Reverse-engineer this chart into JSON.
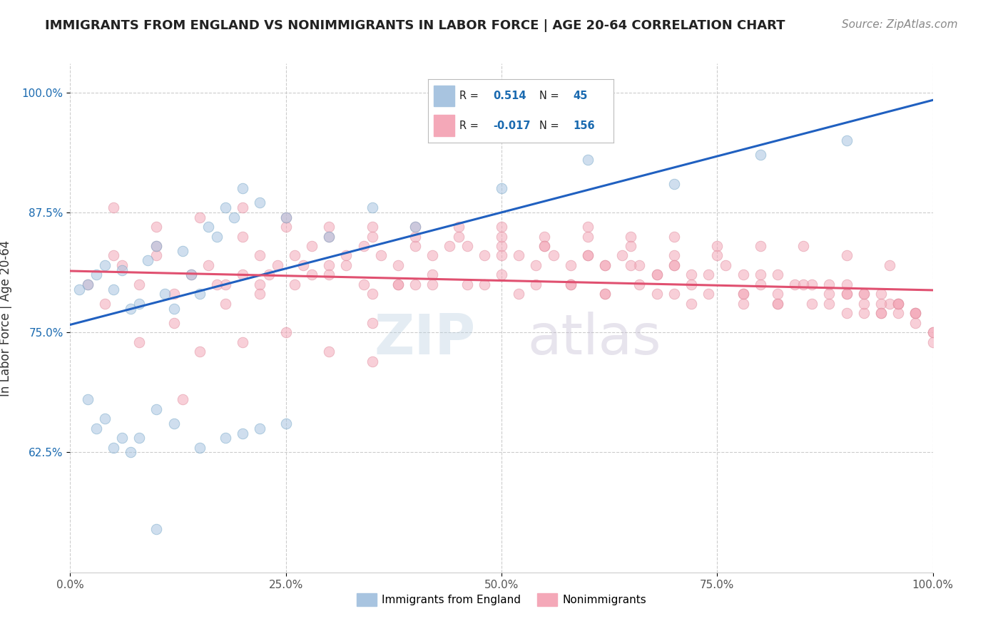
{
  "title": "IMMIGRANTS FROM ENGLAND VS NONIMMIGRANTS IN LABOR FORCE | AGE 20-64 CORRELATION CHART",
  "source": "Source: ZipAtlas.com",
  "ylabel": "In Labor Force | Age 20-64",
  "xlim": [
    0.0,
    1.0
  ],
  "ylim": [
    0.5,
    1.03
  ],
  "yticks": [
    0.625,
    0.75,
    0.875,
    1.0
  ],
  "ytick_labels": [
    "62.5%",
    "75.0%",
    "87.5%",
    "100.0%"
  ],
  "xticks": [
    0.0,
    0.25,
    0.5,
    0.75,
    1.0
  ],
  "xtick_labels": [
    "0.0%",
    "25.0%",
    "50.0%",
    "75.0%",
    "100.0%"
  ],
  "blue_label": "Immigrants from England",
  "pink_label": "Nonimmigrants",
  "blue_color": "#a8c4e0",
  "pink_color": "#f4a8b8",
  "blue_edge": "#7aaaca",
  "pink_edge": "#e090a0",
  "trend_blue": "#2060c0",
  "trend_pink": "#e05070",
  "blue_scatter_x": [
    0.01,
    0.02,
    0.03,
    0.04,
    0.05,
    0.06,
    0.07,
    0.08,
    0.09,
    0.1,
    0.11,
    0.12,
    0.13,
    0.14,
    0.15,
    0.16,
    0.17,
    0.18,
    0.19,
    0.2,
    0.22,
    0.25,
    0.3,
    0.35,
    0.4,
    0.5,
    0.6,
    0.7,
    0.8,
    0.9,
    0.02,
    0.03,
    0.04,
    0.05,
    0.06,
    0.07,
    0.08,
    0.1,
    0.12,
    0.15,
    0.18,
    0.2,
    0.22,
    0.25,
    0.1
  ],
  "blue_scatter_y": [
    0.795,
    0.8,
    0.81,
    0.82,
    0.795,
    0.815,
    0.775,
    0.78,
    0.825,
    0.84,
    0.79,
    0.775,
    0.835,
    0.81,
    0.79,
    0.86,
    0.85,
    0.88,
    0.87,
    0.9,
    0.885,
    0.87,
    0.85,
    0.88,
    0.86,
    0.9,
    0.93,
    0.905,
    0.935,
    0.95,
    0.68,
    0.65,
    0.66,
    0.63,
    0.64,
    0.625,
    0.64,
    0.67,
    0.655,
    0.63,
    0.64,
    0.645,
    0.65,
    0.655,
    0.545
  ],
  "pink_scatter_x": [
    0.02,
    0.04,
    0.06,
    0.08,
    0.1,
    0.12,
    0.14,
    0.16,
    0.18,
    0.2,
    0.22,
    0.24,
    0.26,
    0.28,
    0.3,
    0.32,
    0.34,
    0.36,
    0.38,
    0.4,
    0.42,
    0.44,
    0.46,
    0.48,
    0.5,
    0.52,
    0.54,
    0.56,
    0.58,
    0.6,
    0.62,
    0.64,
    0.66,
    0.68,
    0.7,
    0.72,
    0.74,
    0.76,
    0.78,
    0.8,
    0.82,
    0.84,
    0.86,
    0.88,
    0.9,
    0.92,
    0.94,
    0.96,
    0.98,
    1.0,
    0.05,
    0.1,
    0.15,
    0.2,
    0.25,
    0.3,
    0.35,
    0.4,
    0.45,
    0.5,
    0.55,
    0.6,
    0.65,
    0.7,
    0.75,
    0.8,
    0.85,
    0.9,
    0.95,
    0.3,
    0.25,
    0.2,
    0.35,
    0.4,
    0.45,
    0.5,
    0.55,
    0.6,
    0.65,
    0.7,
    0.5,
    0.55,
    0.6,
    0.65,
    0.35,
    0.4,
    0.7,
    0.75,
    0.8,
    0.85,
    0.9,
    0.95,
    0.35,
    0.15,
    0.2,
    0.25,
    0.3,
    0.05,
    0.1,
    0.35,
    0.22,
    0.28,
    0.32,
    0.38,
    0.42,
    0.48,
    0.52,
    0.58,
    0.62,
    0.68,
    0.72,
    0.78,
    0.82,
    0.88,
    0.92,
    0.62,
    0.68,
    0.72,
    0.78,
    0.82,
    0.88,
    0.92,
    0.96,
    0.98,
    1.0,
    0.94,
    0.96,
    0.98,
    1.0,
    0.9,
    0.92,
    0.94,
    0.96,
    0.98,
    0.22,
    0.26,
    0.3,
    0.34,
    0.38,
    0.42,
    0.46,
    0.5,
    0.54,
    0.58,
    0.62,
    0.66,
    0.7,
    0.74,
    0.78,
    0.82,
    0.86,
    0.9,
    0.94,
    0.13,
    0.17,
    0.23,
    0.27,
    0.12,
    0.08,
    0.18
  ],
  "pink_scatter_y": [
    0.8,
    0.78,
    0.82,
    0.8,
    0.83,
    0.79,
    0.81,
    0.82,
    0.8,
    0.81,
    0.83,
    0.82,
    0.83,
    0.84,
    0.82,
    0.83,
    0.84,
    0.83,
    0.82,
    0.84,
    0.83,
    0.84,
    0.84,
    0.83,
    0.84,
    0.83,
    0.82,
    0.83,
    0.82,
    0.83,
    0.82,
    0.83,
    0.82,
    0.81,
    0.82,
    0.81,
    0.81,
    0.82,
    0.81,
    0.8,
    0.81,
    0.8,
    0.8,
    0.8,
    0.79,
    0.79,
    0.79,
    0.78,
    0.77,
    0.75,
    0.88,
    0.86,
    0.87,
    0.85,
    0.86,
    0.85,
    0.86,
    0.85,
    0.86,
    0.85,
    0.85,
    0.86,
    0.85,
    0.85,
    0.84,
    0.84,
    0.84,
    0.83,
    0.82,
    0.86,
    0.87,
    0.88,
    0.85,
    0.86,
    0.85,
    0.86,
    0.84,
    0.85,
    0.84,
    0.83,
    0.83,
    0.84,
    0.83,
    0.82,
    0.79,
    0.8,
    0.82,
    0.83,
    0.81,
    0.8,
    0.79,
    0.78,
    0.72,
    0.73,
    0.74,
    0.75,
    0.73,
    0.83,
    0.84,
    0.76,
    0.8,
    0.81,
    0.82,
    0.8,
    0.81,
    0.8,
    0.79,
    0.8,
    0.79,
    0.79,
    0.78,
    0.79,
    0.78,
    0.78,
    0.77,
    0.82,
    0.81,
    0.8,
    0.79,
    0.79,
    0.79,
    0.78,
    0.78,
    0.77,
    0.75,
    0.77,
    0.77,
    0.76,
    0.74,
    0.8,
    0.79,
    0.78,
    0.78,
    0.77,
    0.79,
    0.8,
    0.81,
    0.8,
    0.8,
    0.8,
    0.8,
    0.81,
    0.8,
    0.8,
    0.79,
    0.8,
    0.79,
    0.79,
    0.78,
    0.78,
    0.78,
    0.77,
    0.77,
    0.68,
    0.8,
    0.81,
    0.82,
    0.76,
    0.74,
    0.78
  ],
  "blue_trend_x": [
    0.0,
    1.0
  ],
  "blue_trend_y": [
    0.758,
    0.992
  ],
  "pink_trend_x": [
    0.0,
    1.0
  ],
  "pink_trend_y": [
    0.814,
    0.794
  ],
  "watermark_zip": "ZIP",
  "watermark_atlas": "atlas",
  "background_color": "#ffffff",
  "grid_color": "#cccccc",
  "title_fontsize": 13,
  "axis_label_fontsize": 12,
  "tick_fontsize": 11,
  "source_fontsize": 11,
  "scatter_size": 110,
  "scatter_alpha": 0.55,
  "legend_R_color": "#1a6ab0",
  "legend_N_color": "#1a6ab0",
  "ytick_color": "#1a6ab0",
  "xtick_color": "#555555"
}
